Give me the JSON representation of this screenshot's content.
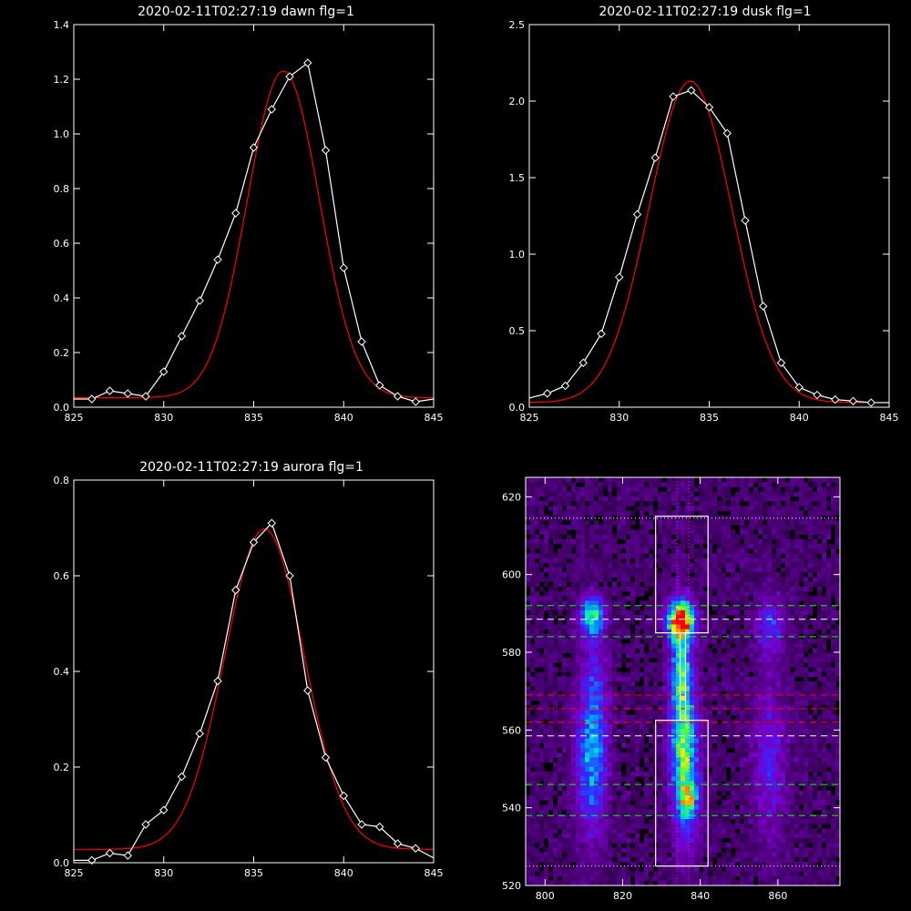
{
  "figure": {
    "background": "#000000",
    "foreground": "#ffffff",
    "fit_color": "#ff0000"
  },
  "chart_data": [
    {
      "id": "dawn",
      "type": "line",
      "title": "2020-02-11T02:27:19 dawn flg=1",
      "xlim": [
        825,
        845
      ],
      "ylim": [
        0.0,
        1.4
      ],
      "xticks": [
        "825",
        "830",
        "835",
        "840",
        "845"
      ],
      "yticks": [
        "0.0",
        "0.2",
        "0.4",
        "0.6",
        "0.8",
        "1.0",
        "1.2",
        "1.4"
      ],
      "grid": false,
      "series": [
        {
          "role": "data",
          "color": "#ffffff",
          "marker": "diamond",
          "x": [
            825,
            826,
            827,
            828,
            829,
            830,
            831,
            832,
            833,
            834,
            835,
            836,
            837,
            838,
            839,
            840,
            841,
            842,
            843,
            844,
            845
          ],
          "y": [
            0.03,
            0.03,
            0.06,
            0.05,
            0.04,
            0.13,
            0.26,
            0.39,
            0.54,
            0.71,
            0.95,
            1.09,
            1.21,
            1.26,
            0.94,
            0.51,
            0.24,
            0.08,
            0.04,
            0.02,
            0.03
          ]
        },
        {
          "role": "fit",
          "color": "#ff0000",
          "model": "gaussian",
          "amplitude": 1.195,
          "center": 836.65,
          "sigma": 2.0,
          "baseline": 0.035
        }
      ]
    },
    {
      "id": "dusk",
      "type": "line",
      "title": "2020-02-11T02:27:19 dusk flg=1",
      "xlim": [
        825,
        845
      ],
      "ylim": [
        0.0,
        2.5
      ],
      "xticks": [
        "825",
        "830",
        "835",
        "840",
        "845"
      ],
      "yticks": [
        "0.0",
        "0.5",
        "1.0",
        "1.5",
        "2.0",
        "2.5"
      ],
      "grid": false,
      "series": [
        {
          "role": "data",
          "color": "#ffffff",
          "marker": "diamond",
          "x": [
            825,
            826,
            827,
            828,
            829,
            830,
            831,
            832,
            833,
            834,
            835,
            836,
            837,
            838,
            839,
            840,
            841,
            842,
            843,
            844,
            845
          ],
          "y": [
            0.06,
            0.09,
            0.14,
            0.29,
            0.48,
            0.85,
            1.26,
            1.63,
            2.03,
            2.07,
            1.96,
            1.79,
            1.22,
            0.66,
            0.29,
            0.13,
            0.08,
            0.05,
            0.04,
            0.03,
            0.03
          ]
        },
        {
          "role": "fit",
          "color": "#ff0000",
          "model": "gaussian",
          "amplitude": 2.1,
          "center": 833.95,
          "sigma": 2.3,
          "baseline": 0.03
        }
      ]
    },
    {
      "id": "aurora",
      "type": "line",
      "title": "2020-02-11T02:27:19 aurora flg=1",
      "xlim": [
        825,
        845
      ],
      "ylim": [
        0.0,
        0.8
      ],
      "xticks": [
        "825",
        "830",
        "835",
        "840",
        "845"
      ],
      "yticks": [
        "0.0",
        "0.2",
        "0.4",
        "0.6",
        "0.8"
      ],
      "grid": false,
      "series": [
        {
          "role": "data",
          "color": "#ffffff",
          "marker": "diamond",
          "x": [
            825,
            826,
            827,
            828,
            829,
            830,
            831,
            832,
            833,
            834,
            835,
            836,
            837,
            838,
            839,
            840,
            841,
            842,
            843,
            844,
            845
          ],
          "y": [
            0.005,
            0.005,
            0.02,
            0.015,
            0.08,
            0.11,
            0.18,
            0.27,
            0.38,
            0.57,
            0.67,
            0.71,
            0.6,
            0.36,
            0.22,
            0.14,
            0.08,
            0.075,
            0.04,
            0.03,
            0.01
          ]
        },
        {
          "role": "fit",
          "color": "#ff0000",
          "model": "gaussian",
          "amplitude": 0.67,
          "center": 835.6,
          "sigma": 2.2,
          "baseline": 0.028
        }
      ]
    },
    {
      "id": "image",
      "type": "heatmap",
      "title": "",
      "xlim": [
        795,
        876
      ],
      "ylim": [
        520,
        625
      ],
      "xticks": [
        "800",
        "820",
        "840",
        "860"
      ],
      "yticks": [
        "520",
        "540",
        "560",
        "580",
        "600",
        "620"
      ],
      "colormap": "rainbow",
      "blobs": [
        {
          "x": 835,
          "y": 588,
          "sx": 2.2,
          "sy": 3.0,
          "amp": 1.0
        },
        {
          "x": 835,
          "y": 575,
          "sx": 1.8,
          "sy": 11.0,
          "amp": 0.45
        },
        {
          "x": 836,
          "y": 552,
          "sx": 2.3,
          "sy": 13.0,
          "amp": 0.55
        },
        {
          "x": 837,
          "y": 542,
          "sx": 1.6,
          "sy": 3.0,
          "amp": 0.4
        },
        {
          "x": 812,
          "y": 589,
          "sx": 2.0,
          "sy": 3.5,
          "amp": 0.55
        },
        {
          "x": 812,
          "y": 553,
          "sx": 2.6,
          "sy": 13.0,
          "amp": 0.38
        },
        {
          "x": 813,
          "y": 572,
          "sx": 2.4,
          "sy": 8.0,
          "amp": 0.12
        },
        {
          "x": 858,
          "y": 587,
          "sx": 2.6,
          "sy": 5.0,
          "amp": 0.22
        },
        {
          "x": 858,
          "y": 552,
          "sx": 3.0,
          "sy": 14.0,
          "amp": 0.18
        }
      ],
      "boxes": [
        {
          "x0": 828.5,
          "x1": 842,
          "y0": 585,
          "y1": 615,
          "color": "#ffffff"
        },
        {
          "x0": 828.5,
          "x1": 842,
          "y0": 525,
          "y1": 562.5,
          "color": "#ffffff"
        },
        {
          "x0": 834.8,
          "x1": 836.2,
          "y0": 562.5,
          "y1": 585,
          "color": "#ffffff"
        }
      ],
      "hlines": [
        {
          "y": 592,
          "color": "#00ff00",
          "style": "dashed"
        },
        {
          "y": 588.5,
          "color": "#ffffff",
          "style": "dashed"
        },
        {
          "y": 584,
          "color": "#00ff00",
          "style": "dashed"
        },
        {
          "y": 569,
          "color": "#ff0000",
          "style": "dashed"
        },
        {
          "y": 565.5,
          "color": "#ff0000",
          "style": "dashed"
        },
        {
          "y": 562,
          "color": "#ff0000",
          "style": "dashed"
        },
        {
          "y": 558.5,
          "color": "#ffffff",
          "style": "dashed"
        },
        {
          "y": 546,
          "color": "#00ff00",
          "style": "dashed"
        },
        {
          "y": 538,
          "color": "#00ff00",
          "style": "dashed"
        },
        {
          "y": 614.5,
          "color": "#ffffff",
          "style": "dotted"
        },
        {
          "y": 525,
          "color": "#ffffff",
          "style": "dotted"
        }
      ],
      "vlines": [
        {
          "x": 834,
          "color": "#ff00ff",
          "style": "dotted"
        },
        {
          "x": 837,
          "color": "#ff00ff",
          "style": "dotted"
        }
      ]
    }
  ]
}
